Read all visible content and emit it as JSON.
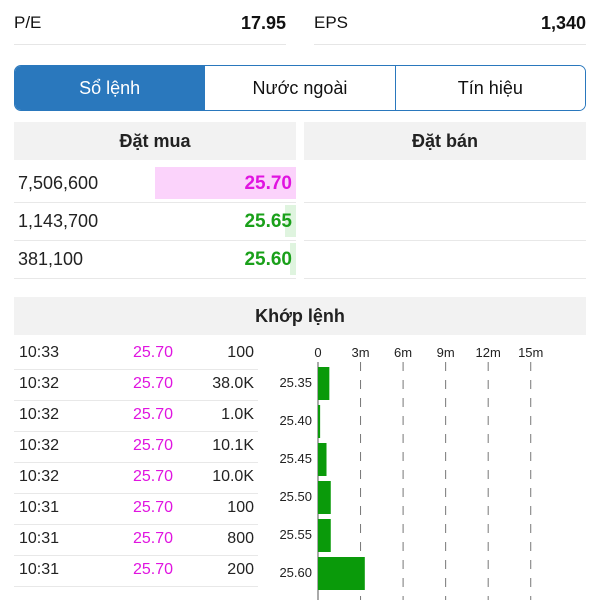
{
  "stats": [
    {
      "label": "P/E",
      "value": "17.95"
    },
    {
      "label": "EPS",
      "value": "1,340"
    }
  ],
  "tabs": [
    {
      "label": "Sổ lệnh",
      "active": true
    },
    {
      "label": "Nước ngoài",
      "active": false
    },
    {
      "label": "Tín hiệu",
      "active": false
    }
  ],
  "order_book": {
    "buy_header": "Đặt mua",
    "sell_header": "Đặt bán",
    "bids": [
      {
        "volume": "7,506,600",
        "price": "25.70",
        "color": "#e014e0",
        "bar_color": "#fbd3fb",
        "fill": 0.5
      },
      {
        "volume": "1,143,700",
        "price": "25.65",
        "color": "#1aa01a",
        "bar_color": "#dff4df",
        "fill": 0.04
      },
      {
        "volume": "381,100",
        "price": "25.60",
        "color": "#1aa01a",
        "bar_color": "#dff4df",
        "fill": 0.02
      }
    ]
  },
  "matched": {
    "header": "Khớp lệnh",
    "trades": [
      {
        "time": "10:33",
        "price": "25.70",
        "qty": "100"
      },
      {
        "time": "10:32",
        "price": "25.70",
        "qty": "38.0K"
      },
      {
        "time": "10:32",
        "price": "25.70",
        "qty": "1.0K"
      },
      {
        "time": "10:32",
        "price": "25.70",
        "qty": "10.1K"
      },
      {
        "time": "10:32",
        "price": "25.70",
        "qty": "10.0K"
      },
      {
        "time": "10:31",
        "price": "25.70",
        "qty": "100"
      },
      {
        "time": "10:31",
        "price": "25.70",
        "qty": "800"
      },
      {
        "time": "10:31",
        "price": "25.70",
        "qty": "200"
      }
    ]
  },
  "chart_data": {
    "type": "bar",
    "orientation": "horizontal",
    "x_ticks": [
      "0",
      "3m",
      "6m",
      "9m",
      "12m",
      "15m"
    ],
    "x_tick_values": [
      0,
      3,
      6,
      9,
      12,
      15
    ],
    "xlim": [
      0,
      16.5
    ],
    "categories": [
      "25.35",
      "25.40",
      "25.45",
      "25.50",
      "25.55",
      "25.60"
    ],
    "values": [
      0.8,
      0.15,
      0.6,
      0.9,
      0.9,
      3.3
    ],
    "bar_color": "#0a9a0a",
    "grid": "dashed vertical"
  }
}
